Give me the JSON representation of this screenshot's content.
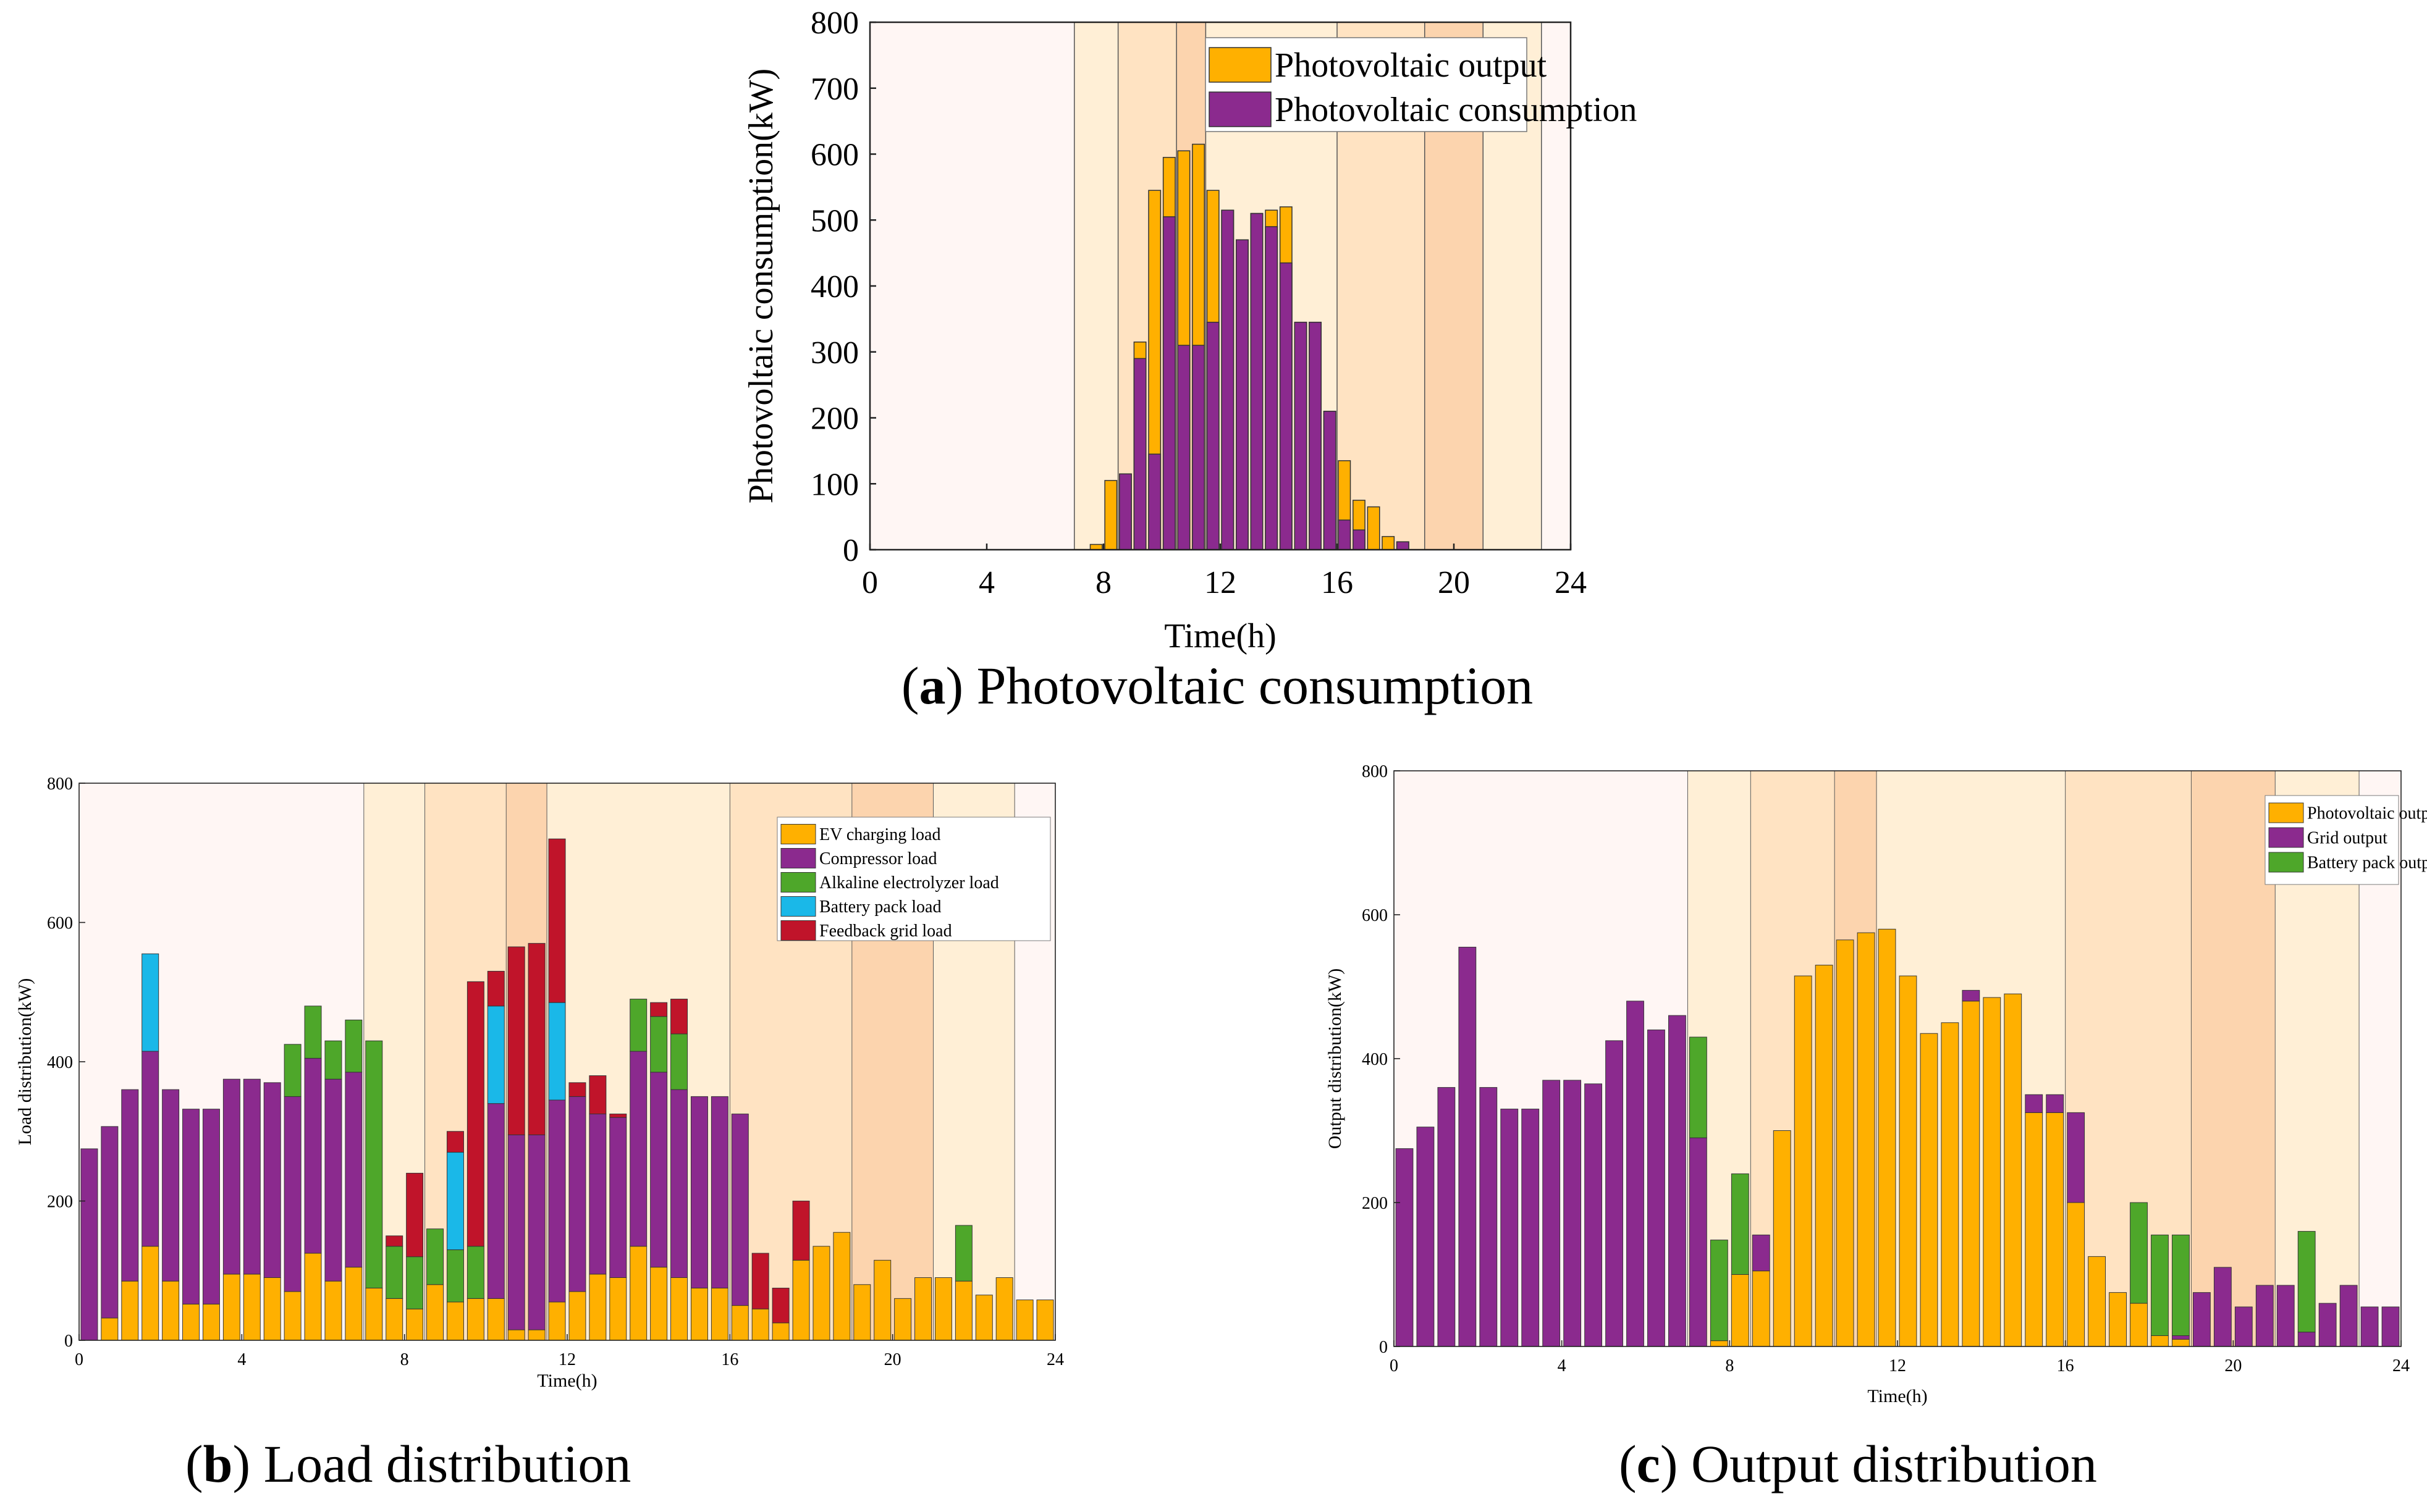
{
  "captions": {
    "a": {
      "letter": "a",
      "text": "Photovoltaic consumption"
    },
    "b": {
      "letter": "b",
      "text": "Load distribution"
    },
    "c": {
      "letter": "c",
      "text": "Output distribution"
    }
  },
  "colors": {
    "pv_orange": "#FFB000",
    "purple": "#8B2A8E",
    "green": "#4EA72A",
    "cyan": "#1AB8E8",
    "red": "#C0142A",
    "period_valley": "#FFF6F4",
    "period_flat": "#FFEFD6",
    "period_peak": "#FFE3C2",
    "period_sharp": "#FCD4AE"
  },
  "periods": [
    {
      "from": 0,
      "to": 7,
      "level": "valley"
    },
    {
      "from": 7,
      "to": 8.5,
      "level": "flat"
    },
    {
      "from": 8.5,
      "to": 10.5,
      "level": "peak"
    },
    {
      "from": 10.5,
      "to": 11.5,
      "level": "sharp"
    },
    {
      "from": 11.5,
      "to": 16,
      "level": "flat"
    },
    {
      "from": 16,
      "to": 19,
      "level": "peak"
    },
    {
      "from": 19,
      "to": 21,
      "level": "sharp"
    },
    {
      "from": 21,
      "to": 23,
      "level": "flat"
    },
    {
      "from": 23,
      "to": 24,
      "level": "valley"
    }
  ],
  "chart_data": [
    {
      "id": "a",
      "type": "bar",
      "title": "",
      "xlabel": "Time(h)",
      "ylabel": "Photovoltaic consumption(kW)",
      "xlim": [
        0,
        24
      ],
      "ylim": [
        0,
        800
      ],
      "xticks": [
        "0",
        "4",
        "8",
        "12",
        "16",
        "20",
        "24"
      ],
      "yticks": [
        "0",
        "100",
        "200",
        "300",
        "400",
        "500",
        "600",
        "700",
        "800"
      ],
      "legend_position": "top-right",
      "bar_mode": "overlay",
      "legend": [
        "Photovoltaic output",
        "Photovoltaic consumption"
      ],
      "x": [
        0.25,
        0.75,
        1.25,
        1.75,
        2.25,
        2.75,
        3.25,
        3.75,
        4.25,
        4.75,
        5.25,
        5.75,
        6.25,
        6.75,
        7.25,
        7.75,
        8.25,
        8.75,
        9.25,
        9.75,
        10.25,
        10.75,
        11.25,
        11.75,
        12.25,
        12.75,
        13.25,
        13.75,
        14.25,
        14.75,
        15.25,
        15.75,
        16.25,
        16.75,
        17.25,
        17.75,
        18.25,
        18.75,
        19.25,
        19.75,
        20.25,
        20.75,
        21.25,
        21.75,
        22.25,
        22.75,
        23.25,
        23.75
      ],
      "series": [
        {
          "name": "Photovoltaic output",
          "color_key": "pv_orange",
          "values": [
            0,
            0,
            0,
            0,
            0,
            0,
            0,
            0,
            0,
            0,
            0,
            0,
            0,
            0,
            0,
            8,
            105,
            115,
            315,
            545,
            595,
            605,
            615,
            545,
            515,
            470,
            510,
            515,
            520,
            345,
            345,
            210,
            135,
            75,
            65,
            20,
            12,
            0,
            0,
            0,
            0,
            0,
            0,
            0,
            0,
            0,
            0,
            0
          ]
        },
        {
          "name": "Photovoltaic consumption",
          "color_key": "purple",
          "values": [
            0,
            0,
            0,
            0,
            0,
            0,
            0,
            0,
            0,
            0,
            0,
            0,
            0,
            0,
            0,
            0,
            0,
            115,
            290,
            145,
            505,
            310,
            310,
            345,
            515,
            470,
            510,
            490,
            435,
            345,
            345,
            210,
            45,
            30,
            0,
            0,
            12,
            0,
            0,
            0,
            0,
            0,
            0,
            0,
            0,
            0,
            0,
            0
          ]
        }
      ]
    },
    {
      "id": "b",
      "type": "bar",
      "title": "",
      "xlabel": "Time(h)",
      "ylabel": "Load distribution(kW)",
      "xlim": [
        0,
        24
      ],
      "ylim": [
        0,
        800
      ],
      "xticks": [
        "0",
        "4",
        "8",
        "12",
        "16",
        "20",
        "24"
      ],
      "yticks": [
        "0",
        "200",
        "400",
        "600",
        "800"
      ],
      "legend_position": "top-right",
      "bar_mode": "stacked",
      "legend": [
        "EV charging load",
        "Compressor load",
        "Alkaline electrolyzer load",
        "Battery pack load",
        "Feedback grid load"
      ],
      "x": [
        0.25,
        0.75,
        1.25,
        1.75,
        2.25,
        2.75,
        3.25,
        3.75,
        4.25,
        4.75,
        5.25,
        5.75,
        6.25,
        6.75,
        7.25,
        7.75,
        8.25,
        8.75,
        9.25,
        9.75,
        10.25,
        10.75,
        11.25,
        11.75,
        12.25,
        12.75,
        13.25,
        13.75,
        14.25,
        14.75,
        15.25,
        15.75,
        16.25,
        16.75,
        17.25,
        17.75,
        18.25,
        18.75,
        19.25,
        19.75,
        20.25,
        20.75,
        21.25,
        21.75,
        22.25,
        22.75,
        23.25,
        23.75
      ],
      "series": [
        {
          "name": "EV charging load",
          "color_key": "pv_orange",
          "values": [
            0,
            32,
            85,
            135,
            85,
            52,
            52,
            95,
            95,
            90,
            70,
            125,
            85,
            105,
            75,
            60,
            45,
            80,
            55,
            60,
            60,
            15,
            15,
            55,
            70,
            95,
            90,
            135,
            105,
            90,
            75,
            75,
            50,
            45,
            25,
            115,
            135,
            155,
            80,
            115,
            60,
            90,
            90,
            85,
            65,
            90,
            58,
            58
          ]
        },
        {
          "name": "Compressor load",
          "color_key": "purple",
          "values": [
            275,
            275,
            275,
            280,
            275,
            280,
            280,
            280,
            280,
            280,
            280,
            280,
            290,
            280,
            0,
            0,
            0,
            0,
            0,
            0,
            280,
            280,
            280,
            290,
            280,
            230,
            230,
            280,
            280,
            270,
            275,
            275,
            275,
            0,
            0,
            0,
            0,
            0,
            0,
            0,
            0,
            0,
            0,
            0,
            0,
            0,
            0,
            0
          ]
        },
        {
          "name": "Alkaline electrolyzer load",
          "color_key": "green",
          "values": [
            0,
            0,
            0,
            0,
            0,
            0,
            0,
            0,
            0,
            0,
            75,
            75,
            55,
            75,
            355,
            75,
            75,
            80,
            75,
            75,
            0,
            0,
            0,
            0,
            0,
            0,
            0,
            75,
            80,
            80,
            0,
            0,
            0,
            0,
            0,
            0,
            0,
            0,
            0,
            0,
            0,
            0,
            0,
            80,
            0,
            0,
            0,
            0
          ]
        },
        {
          "name": "Battery pack load",
          "color_key": "cyan",
          "values": [
            0,
            0,
            0,
            140,
            0,
            0,
            0,
            0,
            0,
            0,
            0,
            0,
            0,
            0,
            0,
            0,
            0,
            0,
            140,
            0,
            140,
            0,
            0,
            140,
            0,
            0,
            0,
            0,
            0,
            0,
            0,
            0,
            0,
            0,
            0,
            0,
            0,
            0,
            0,
            0,
            0,
            0,
            0,
            0,
            0,
            0,
            0,
            0
          ]
        },
        {
          "name": "Feedback grid load",
          "color_key": "red",
          "values": [
            0,
            0,
            0,
            0,
            0,
            0,
            0,
            0,
            0,
            0,
            0,
            0,
            0,
            0,
            0,
            15,
            120,
            0,
            30,
            380,
            50,
            270,
            275,
            235,
            20,
            55,
            5,
            0,
            20,
            50,
            0,
            0,
            0,
            80,
            50,
            85,
            0,
            0,
            0,
            0,
            0,
            0,
            0,
            0,
            0,
            0,
            0,
            0
          ]
        }
      ]
    },
    {
      "id": "c",
      "type": "bar",
      "title": "",
      "xlabel": "Time(h)",
      "ylabel": "Output distribution(kW)",
      "xlim": [
        0,
        24
      ],
      "ylim": [
        0,
        800
      ],
      "xticks": [
        "0",
        "4",
        "8",
        "12",
        "16",
        "20",
        "24"
      ],
      "yticks": [
        "0",
        "200",
        "400",
        "600",
        "800"
      ],
      "legend_position": "top-right",
      "bar_mode": "stacked",
      "legend": [
        "Photovoltaic output",
        "Grid output",
        "Battery pack output"
      ],
      "x": [
        0.25,
        0.75,
        1.25,
        1.75,
        2.25,
        2.75,
        3.25,
        3.75,
        4.25,
        4.75,
        5.25,
        5.75,
        6.25,
        6.75,
        7.25,
        7.75,
        8.25,
        8.75,
        9.25,
        9.75,
        10.25,
        10.75,
        11.25,
        11.75,
        12.25,
        12.75,
        13.25,
        13.75,
        14.25,
        14.75,
        15.25,
        15.75,
        16.25,
        16.75,
        17.25,
        17.75,
        18.25,
        18.75,
        19.25,
        19.75,
        20.25,
        20.75,
        21.25,
        21.75,
        22.25,
        22.75,
        23.25,
        23.75
      ],
      "series": [
        {
          "name": "Photovoltaic output",
          "color_key": "pv_orange",
          "values": [
            0,
            0,
            0,
            0,
            0,
            0,
            0,
            0,
            0,
            0,
            0,
            0,
            0,
            0,
            0,
            8,
            100,
            105,
            300,
            515,
            530,
            565,
            575,
            580,
            515,
            435,
            450,
            480,
            485,
            490,
            325,
            325,
            200,
            125,
            75,
            60,
            15,
            10,
            0,
            0,
            0,
            0,
            0,
            0,
            0,
            0,
            0,
            0
          ]
        },
        {
          "name": "Grid output",
          "color_key": "purple",
          "values": [
            275,
            305,
            360,
            555,
            360,
            330,
            330,
            370,
            370,
            365,
            425,
            480,
            440,
            460,
            290,
            0,
            0,
            50,
            0,
            0,
            0,
            0,
            0,
            0,
            0,
            0,
            0,
            15,
            0,
            0,
            25,
            25,
            125,
            0,
            0,
            0,
            0,
            5,
            75,
            110,
            55,
            85,
            85,
            20,
            60,
            85,
            55,
            55
          ]
        },
        {
          "name": "Battery pack output",
          "color_key": "green",
          "values": [
            0,
            0,
            0,
            0,
            0,
            0,
            0,
            0,
            0,
            0,
            0,
            0,
            0,
            0,
            140,
            140,
            140,
            0,
            0,
            0,
            0,
            0,
            0,
            0,
            0,
            0,
            0,
            0,
            0,
            0,
            0,
            0,
            0,
            0,
            0,
            140,
            140,
            140,
            0,
            0,
            0,
            0,
            0,
            140,
            0,
            0,
            0,
            0
          ]
        }
      ]
    }
  ]
}
